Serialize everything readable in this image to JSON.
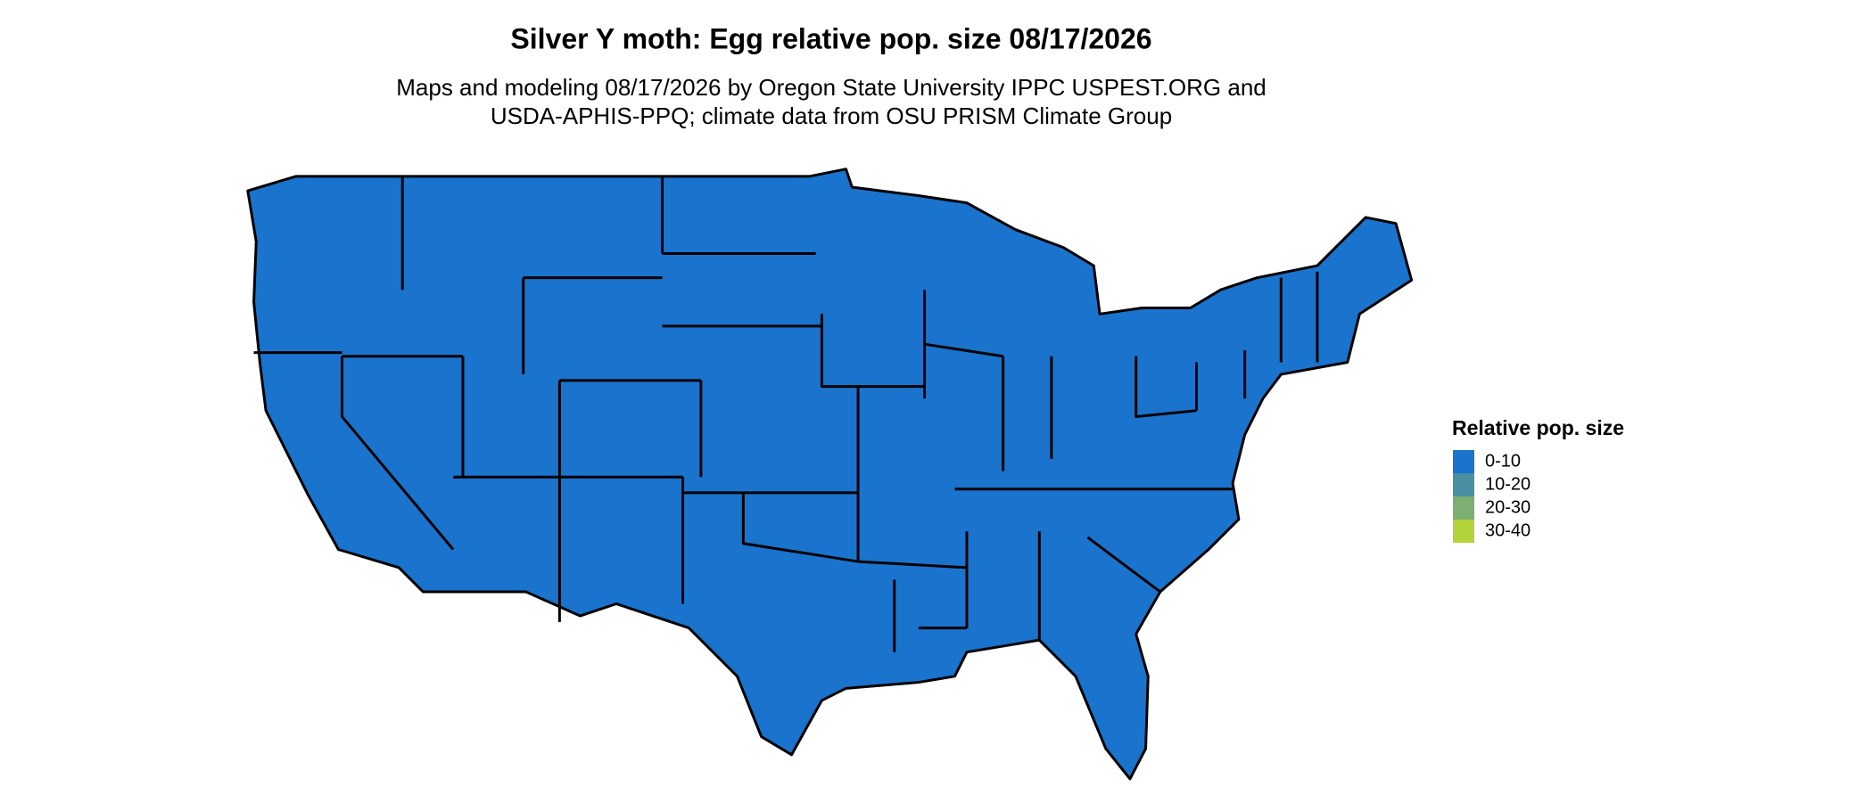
{
  "title": "Silver Y moth: Egg relative pop. size 08/17/2026",
  "subtitle": [
    "Maps and modeling 08/17/2026 by Oregon State University IPPC USPEST.ORG and",
    "USDA-APHIS-PPQ; climate data from OSU PRISM Climate Group"
  ],
  "legend": {
    "title": "Relative pop. size",
    "items": [
      {
        "label": "0-10",
        "color": "#1a73cc"
      },
      {
        "label": "10-20",
        "color": "#4b8fa3"
      },
      {
        "label": "20-30",
        "color": "#7dae72"
      },
      {
        "label": "30-40",
        "color": "#b3d33a"
      }
    ]
  }
}
